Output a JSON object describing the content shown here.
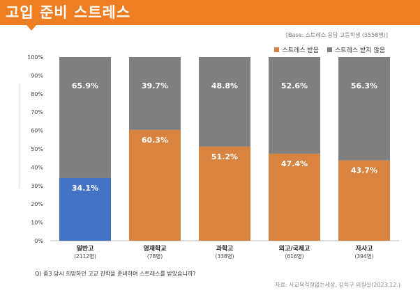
{
  "header": {
    "title": "고입 준비 스트레스"
  },
  "base_note": "[Base: 스트레스 응답 고등학생 (3558명)]",
  "question": "Q) 중3 당시 희망하던 고교 진학을 준비하며 스트레스를 받았습니까?",
  "source": "자료: 사교육걱정없는세상, 강득구 의원실(2023.12.)",
  "colors": {
    "header": "#ef7d22",
    "stressed": "#d98340",
    "highlight": "#4472c4",
    "not_stressed": "#7f7f7f"
  },
  "chart_data": {
    "type": "bar",
    "stacked": true,
    "categories": [
      "일반고",
      "영재학교",
      "과학고",
      "외고/국제고",
      "자사고"
    ],
    "category_counts": [
      "(2112명)",
      "(78명)",
      "(338명)",
      "(616명)",
      "(394명)"
    ],
    "series": [
      {
        "name": "스트레스 받음",
        "values": [
          34.1,
          60.3,
          51.2,
          47.4,
          43.7
        ],
        "labels": [
          "34.1%",
          "60.3%",
          "51.2%",
          "47.4%",
          "43.7%"
        ]
      },
      {
        "name": "스트레스 받지 않음",
        "values": [
          65.9,
          39.7,
          48.8,
          52.6,
          56.3
        ],
        "labels": [
          "65.9%",
          "39.7%",
          "48.8%",
          "52.6%",
          "56.3%"
        ]
      }
    ],
    "ylim": [
      0,
      100
    ],
    "yticks": [
      "0%",
      "10%",
      "20%",
      "30%",
      "40%",
      "50%",
      "60%",
      "70%",
      "80%",
      "90%",
      "100%"
    ],
    "legend_position": "top-right",
    "grid": false
  }
}
